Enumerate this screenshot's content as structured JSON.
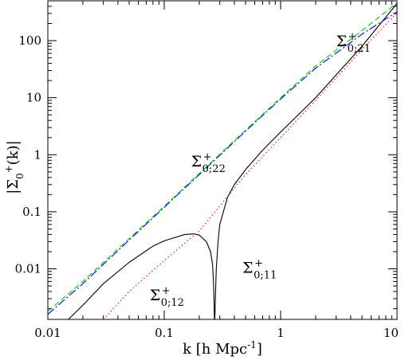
{
  "chart_data": {
    "type": "line",
    "xscale": "log",
    "yscale": "log",
    "xlim": [
      0.01,
      10
    ],
    "ylim": [
      0.0013,
      500
    ],
    "xlabel_parts": {
      "main": "k  [h  Mpc",
      "sup": "-1",
      "close": "]"
    },
    "ylabel_parts": {
      "bar": "|",
      "sigma": "Σ",
      "sub": "0",
      "sup": "+",
      "arg": "(k)",
      "bar2": "|"
    },
    "xticks": [
      {
        "value": 0.01,
        "label": "0.01"
      },
      {
        "value": 0.1,
        "label": "0.1"
      },
      {
        "value": 1,
        "label": "1"
      },
      {
        "value": 10,
        "label": "10"
      }
    ],
    "yticks": [
      {
        "value": 0.01,
        "label": "0.01"
      },
      {
        "value": 0.1,
        "label": "0.1"
      },
      {
        "value": 1,
        "label": "1"
      },
      {
        "value": 10,
        "label": "10"
      },
      {
        "value": 100,
        "label": "100"
      }
    ],
    "grid": false,
    "series": [
      {
        "id": "sigma11",
        "color": "#000000",
        "style": "solid",
        "points": [
          [
            0.015,
            0.0013
          ],
          [
            0.02,
            0.0023
          ],
          [
            0.03,
            0.0055
          ],
          [
            0.05,
            0.013
          ],
          [
            0.08,
            0.025
          ],
          [
            0.1,
            0.031
          ],
          [
            0.15,
            0.04
          ],
          [
            0.18,
            0.041
          ],
          [
            0.2,
            0.039
          ],
          [
            0.23,
            0.03
          ],
          [
            0.25,
            0.02
          ],
          [
            0.26,
            0.012
          ],
          [
            0.265,
            0.006
          ],
          [
            0.268,
            0.0025
          ],
          [
            0.27,
            0.0013
          ],
          [
            0.272,
            0.0013
          ],
          [
            0.275,
            0.003
          ],
          [
            0.28,
            0.01
          ],
          [
            0.29,
            0.03
          ],
          [
            0.3,
            0.06
          ],
          [
            0.35,
            0.18
          ],
          [
            0.4,
            0.3
          ],
          [
            0.5,
            0.55
          ],
          [
            0.7,
            1.2
          ],
          [
            1,
            2.5
          ],
          [
            2,
            10
          ],
          [
            5,
            80
          ],
          [
            10,
            450
          ]
        ]
      },
      {
        "id": "sigma12",
        "color": "#ff0000",
        "style": "dotted",
        "points": [
          [
            0.03,
            0.0013
          ],
          [
            0.05,
            0.004
          ],
          [
            0.1,
            0.014
          ],
          [
            0.2,
            0.046
          ],
          [
            0.5,
            0.45
          ],
          [
            1,
            2.0
          ],
          [
            2,
            9
          ],
          [
            5,
            70
          ],
          [
            10,
            310
          ]
        ]
      },
      {
        "id": "sigma21",
        "color": "#0000ff",
        "style": "dashdot",
        "points": [
          [
            0.01,
            0.0016
          ],
          [
            0.02,
            0.0055
          ],
          [
            0.05,
            0.032
          ],
          [
            0.1,
            0.12
          ],
          [
            0.2,
            0.45
          ],
          [
            0.5,
            2.6
          ],
          [
            1,
            9.5
          ],
          [
            2,
            33
          ],
          [
            5,
            130
          ],
          [
            10,
            320
          ]
        ]
      },
      {
        "id": "sigma22",
        "color": "#00cc00",
        "style": "dashed",
        "points": [
          [
            0.01,
            0.0018
          ],
          [
            0.02,
            0.006
          ],
          [
            0.05,
            0.034
          ],
          [
            0.1,
            0.125
          ],
          [
            0.2,
            0.47
          ],
          [
            0.5,
            2.7
          ],
          [
            1,
            10
          ],
          [
            2,
            36
          ],
          [
            5,
            150
          ],
          [
            10,
            460
          ]
        ]
      }
    ],
    "annotations": [
      {
        "id": "label-sigma21",
        "x": 3.0,
        "y": 80,
        "sigma": "Σ",
        "sub": "0;21",
        "sup": "+"
      },
      {
        "id": "label-sigma22",
        "x": 0.17,
        "y": 0.62,
        "sigma": "Σ",
        "sub": "0;22",
        "sup": "+"
      },
      {
        "id": "label-sigma11",
        "x": 0.47,
        "y": 0.0085,
        "sigma": "Σ",
        "sub": "0;11",
        "sup": "+"
      },
      {
        "id": "label-sigma12",
        "x": 0.075,
        "y": 0.0028,
        "sigma": "Σ",
        "sub": "0;12",
        "sup": "+"
      }
    ]
  }
}
